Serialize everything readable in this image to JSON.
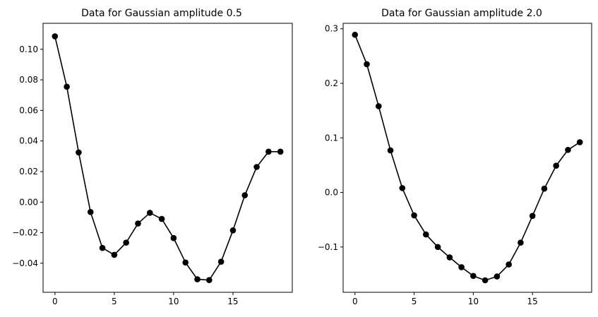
{
  "chart_data": [
    {
      "type": "line",
      "title": "Data for Gaussian amplitude 0.5",
      "xlabel": "",
      "ylabel": "",
      "x": [
        0,
        1,
        2,
        3,
        4,
        5,
        6,
        7,
        8,
        9,
        10,
        11,
        12,
        13,
        14,
        15,
        16,
        17,
        18,
        19
      ],
      "series": [
        {
          "values": [
            0.1085,
            0.0755,
            0.0325,
            -0.0065,
            -0.03,
            -0.0345,
            -0.0265,
            -0.014,
            -0.007,
            -0.011,
            -0.0235,
            -0.0395,
            -0.0505,
            -0.051,
            -0.039,
            -0.0185,
            0.0045,
            0.023,
            0.033,
            0.033
          ],
          "color": "#000000",
          "marker": "circle"
        }
      ],
      "xlim": [
        -1.0,
        20.0
      ],
      "ylim": [
        -0.059,
        0.117
      ],
      "xticks": [
        0,
        5,
        10,
        15
      ],
      "xtick_labels": [
        "0",
        "5",
        "10",
        "15"
      ],
      "yticks": [
        -0.04,
        -0.02,
        0.0,
        0.02,
        0.04,
        0.06,
        0.08,
        0.1
      ],
      "ytick_labels": [
        "−0.04",
        "−0.02",
        "0.00",
        "0.02",
        "0.04",
        "0.06",
        "0.08",
        "0.10"
      ],
      "grid": false,
      "legend": "none"
    },
    {
      "type": "line",
      "title": "Data for Gaussian amplitude 2.0",
      "xlabel": "",
      "ylabel": "",
      "x": [
        0,
        1,
        2,
        3,
        4,
        5,
        6,
        7,
        8,
        9,
        10,
        11,
        12,
        13,
        14,
        15,
        16,
        17,
        18,
        19
      ],
      "series": [
        {
          "values": [
            0.289,
            0.235,
            0.158,
            0.077,
            0.008,
            -0.042,
            -0.077,
            -0.1,
            -0.119,
            -0.137,
            -0.153,
            -0.161,
            -0.154,
            -0.132,
            -0.092,
            -0.043,
            0.007,
            0.049,
            0.078,
            0.092
          ],
          "color": "#000000",
          "marker": "circle"
        }
      ],
      "xlim": [
        -1.0,
        20.0
      ],
      "ylim": [
        -0.183,
        0.31
      ],
      "xticks": [
        0,
        5,
        10,
        15
      ],
      "xtick_labels": [
        "0",
        "5",
        "10",
        "15"
      ],
      "yticks": [
        -0.1,
        0.0,
        0.1,
        0.2,
        0.3
      ],
      "ytick_labels": [
        "−0.1",
        "0.0",
        "0.1",
        "0.2",
        "0.3"
      ],
      "grid": false,
      "legend": "none"
    }
  ]
}
